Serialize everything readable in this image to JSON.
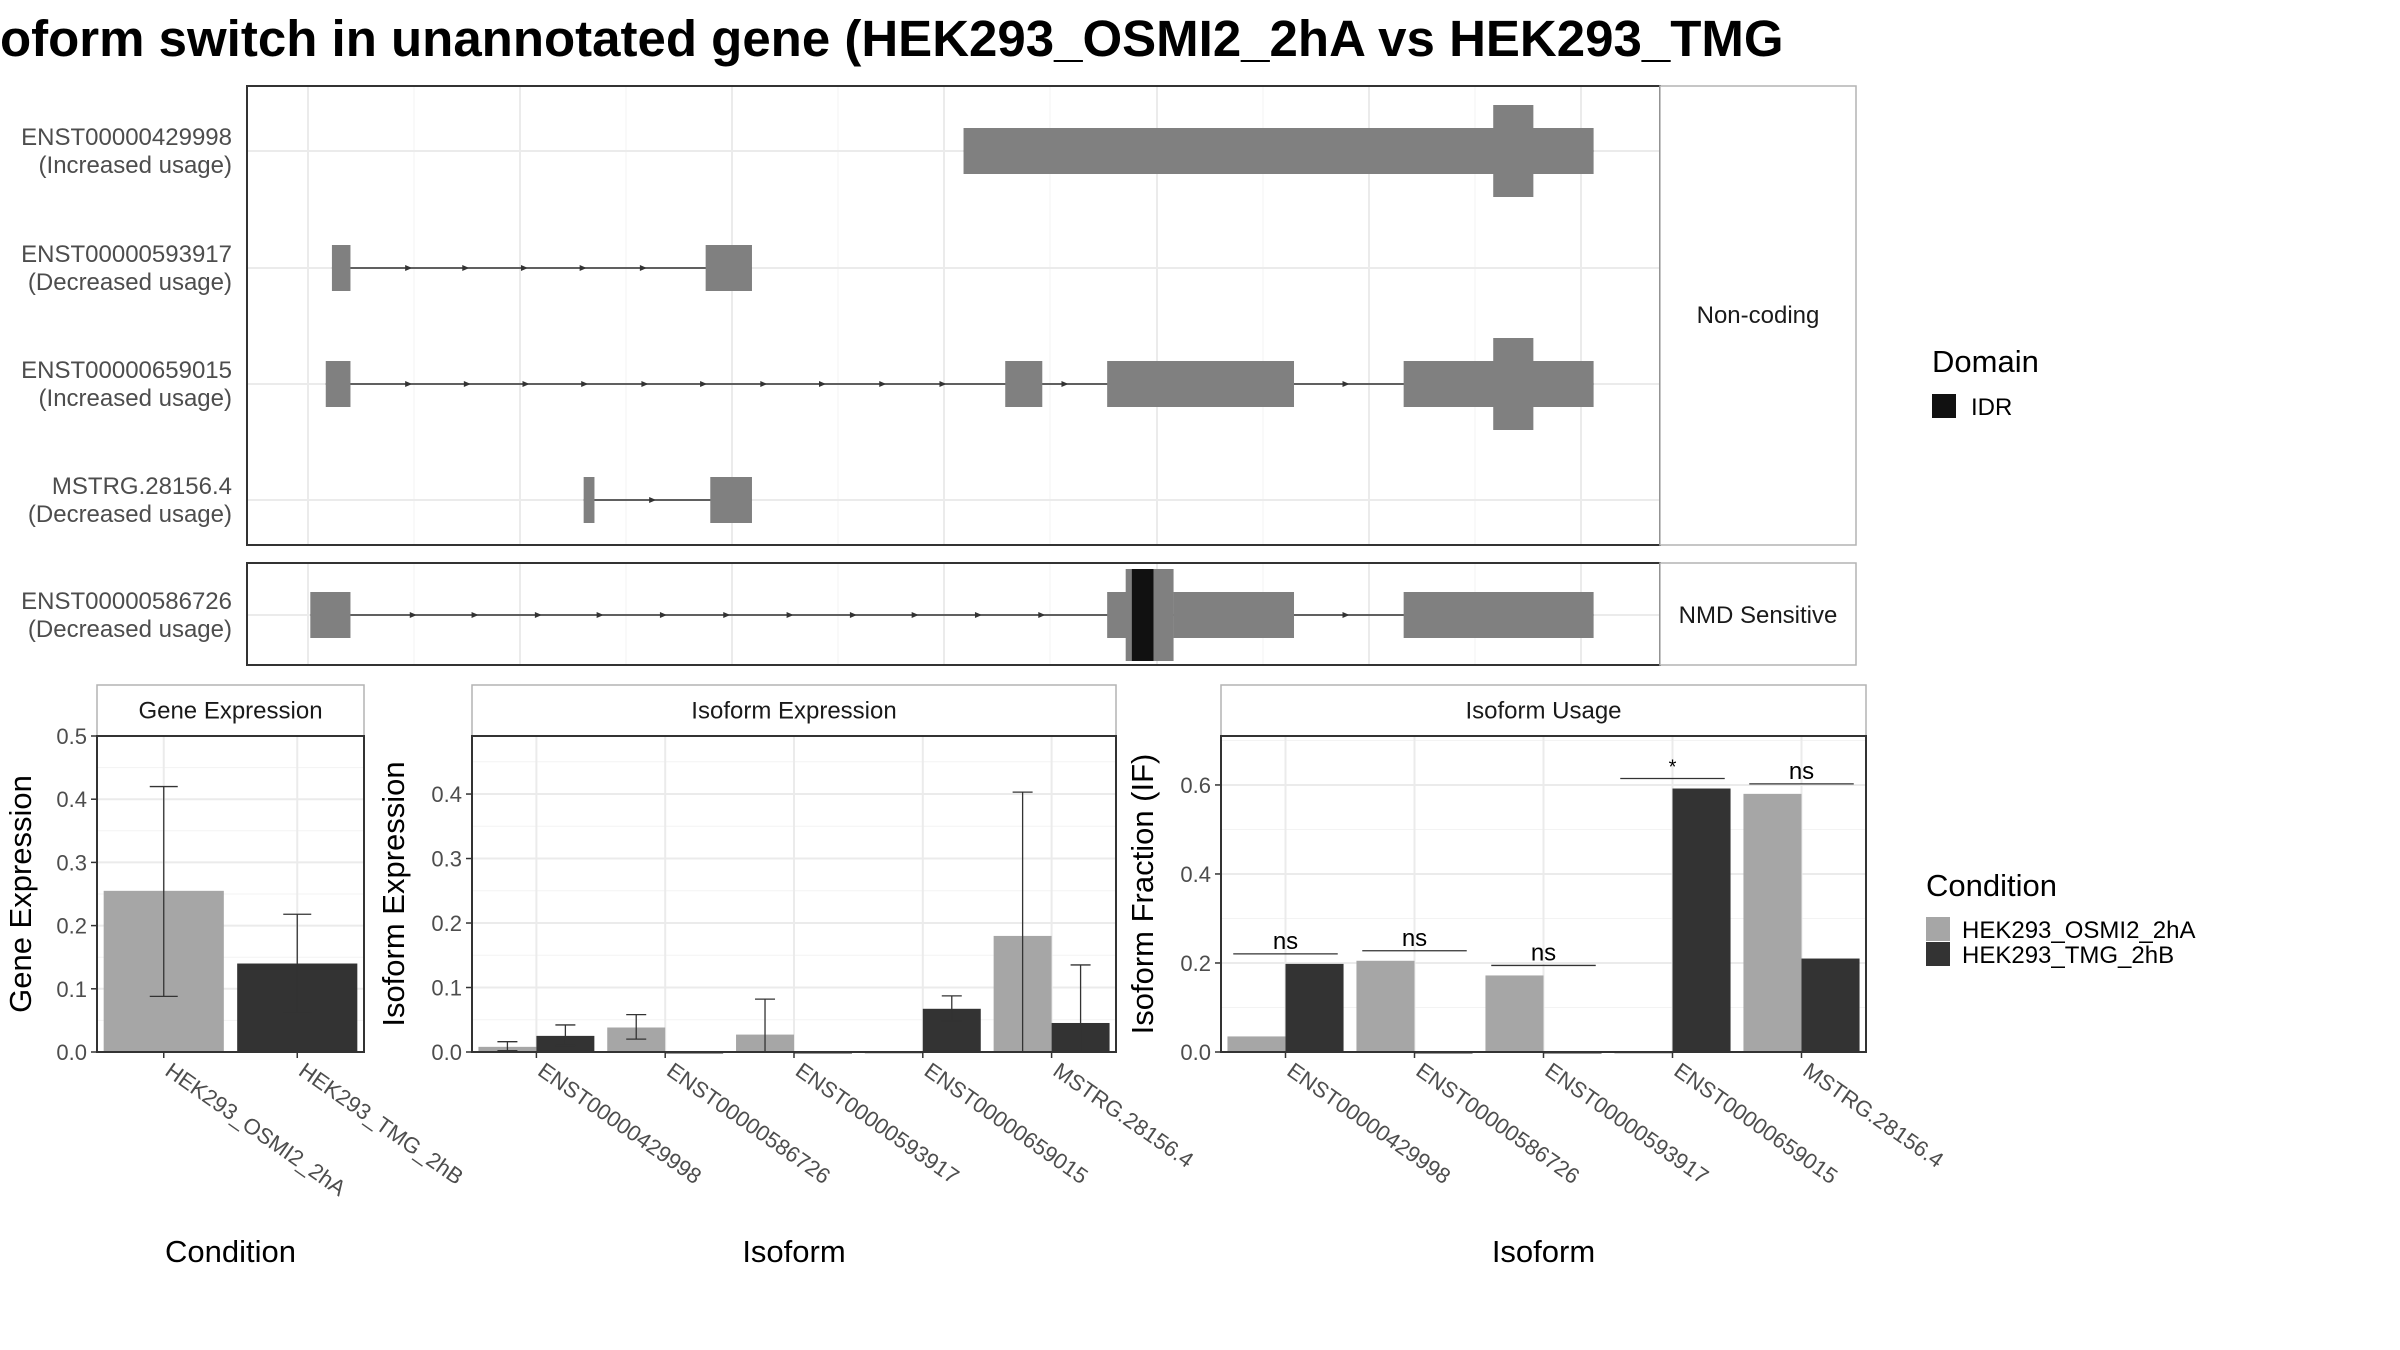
{
  "title": "oform switch in unannotated gene (HEK293_OSMI2_2hA vs HEK293_TMG",
  "colors": {
    "osmi": "#a6a6a6",
    "tmg": "#333333",
    "exon": "#808080",
    "idr": "#111111",
    "grid": "#ebebeb",
    "panel_border": "#333333",
    "strip_border": "#b3b3b3",
    "axis_text": "#4d4d4d"
  },
  "transcripts": {
    "groups": [
      {
        "label": "Non-coding",
        "rows": [
          {
            "id": "ENST00000429998",
            "usage": "(Increased usage)",
            "exons": [
              {
                "start": 624,
                "end": 1032,
                "type": "wide"
              },
              {
                "start": 967,
                "end": 993,
                "type": "cds"
              }
            ],
            "arrows": []
          },
          {
            "id": "ENST00000593917",
            "usage": "(Decreased usage)",
            "exons": [
              {
                "start": 215,
                "end": 227,
                "type": "narrow"
              },
              {
                "start": 457,
                "end": 487,
                "type": "wide"
              }
            ],
            "arrows": [
              265,
              302,
              340,
              378,
              417
            ]
          },
          {
            "id": "ENST00000659015",
            "usage": "(Increased usage)",
            "exons": [
              {
                "start": 211,
                "end": 227,
                "type": "wide"
              },
              {
                "start": 651,
                "end": 675,
                "type": "wide"
              },
              {
                "start": 717,
                "end": 838,
                "type": "wide"
              },
              {
                "start": 909,
                "end": 1032,
                "type": "wide"
              },
              {
                "start": 967,
                "end": 993,
                "type": "cds"
              }
            ],
            "arrows": [
              265,
              303,
              341,
              379,
              418,
              456,
              495,
              533,
              572,
              611,
              690,
              872
            ]
          },
          {
            "id": "MSTRG.28156.4",
            "usage": "(Decreased usage)",
            "exons": [
              {
                "start": 378,
                "end": 385,
                "type": "wide"
              },
              {
                "start": 460,
                "end": 487,
                "type": "wide"
              }
            ],
            "arrows": [
              423
            ]
          }
        ]
      },
      {
        "label": "NMD Sensitive",
        "rows": [
          {
            "id": "ENST00000586726",
            "usage": "(Decreased usage)",
            "exons": [
              {
                "start": 201,
                "end": 227,
                "type": "wide"
              },
              {
                "start": 717,
                "end": 760,
                "type": "wide"
              },
              {
                "start": 729,
                "end": 760,
                "type": "cds"
              },
              {
                "start": 733,
                "end": 747,
                "type": "idr"
              },
              {
                "start": 760,
                "end": 838,
                "type": "wide"
              },
              {
                "start": 909,
                "end": 1032,
                "type": "wide"
              }
            ],
            "arrows": [
              268,
              308,
              349,
              389,
              430,
              471,
              512,
              553,
              593,
              634,
              675,
              872
            ]
          }
        ]
      }
    ]
  },
  "domain_legend": {
    "title": "Domain",
    "items": [
      {
        "label": "IDR",
        "color": "#111111"
      }
    ]
  },
  "condition_legend": {
    "title": "Condition",
    "items": [
      {
        "label": "HEK293_OSMI2_2hA",
        "color": "#a6a6a6"
      },
      {
        "label": "HEK293_TMG_2hB",
        "color": "#333333"
      }
    ]
  },
  "chart_data": [
    {
      "type": "bar",
      "title": "Gene Expression",
      "xlabel": "Condition",
      "ylabel": "Gene Expression",
      "ylim": [
        0,
        0.5
      ],
      "yticks": [
        "0.0",
        "0.1",
        "0.2",
        "0.3",
        "0.4",
        "0.5"
      ],
      "categories": [
        "HEK293_OSMI2_2hA",
        "HEK293_TMG_2hB"
      ],
      "series": [
        {
          "name": "HEK293_OSMI2_2hA",
          "values": [
            0.255,
            null
          ],
          "err_low": [
            0.088,
            null
          ],
          "err_high": [
            0.42,
            null
          ]
        },
        {
          "name": "HEK293_TMG_2hB",
          "values": [
            null,
            0.14
          ],
          "err_low": [
            null,
            0.062
          ],
          "err_high": [
            null,
            0.218
          ]
        }
      ]
    },
    {
      "type": "bar",
      "title": "Isoform Expression",
      "xlabel": "Isoform",
      "ylabel": "Isoform Expression",
      "ylim": [
        0,
        0.49
      ],
      "yticks": [
        "0.0",
        "0.1",
        "0.2",
        "0.3",
        "0.4"
      ],
      "categories": [
        "ENST00000429998",
        "ENST00000586726",
        "ENST00000593917",
        "ENST00000659015",
        "MSTRG.28156.4"
      ],
      "series": [
        {
          "name": "HEK293_OSMI2_2hA",
          "values": [
            0.008,
            0.038,
            0.027,
            0.0,
            0.18
          ],
          "err_low": [
            0.002,
            0.02,
            0.0,
            0.0,
            0.0
          ],
          "err_high": [
            0.016,
            0.058,
            0.082,
            0.0,
            0.403
          ]
        },
        {
          "name": "HEK293_TMG_2hB",
          "values": [
            0.025,
            0.0,
            0.0,
            0.067,
            0.045
          ],
          "err_low": [
            0.01,
            0.0,
            0.0,
            0.048,
            0.0
          ],
          "err_high": [
            0.042,
            0.0,
            0.0,
            0.087,
            0.135
          ]
        }
      ]
    },
    {
      "type": "bar",
      "title": "Isoform Usage",
      "xlabel": "Isoform",
      "ylabel": "Isoform Fraction (IF)",
      "ylim": [
        0,
        0.71
      ],
      "yticks": [
        "0.0",
        "0.2",
        "0.4",
        "0.6"
      ],
      "categories": [
        "ENST00000429998",
        "ENST00000586726",
        "ENST00000593917",
        "ENST00000659015",
        "MSTRG.28156.4"
      ],
      "series": [
        {
          "name": "HEK293_OSMI2_2hA",
          "values": [
            0.035,
            0.205,
            0.172,
            0.0,
            0.58
          ]
        },
        {
          "name": "HEK293_TMG_2hB",
          "values": [
            0.198,
            0.0,
            0.0,
            0.592,
            0.21
          ]
        }
      ],
      "significance": [
        "ns",
        "ns",
        "ns",
        "*",
        "ns"
      ]
    }
  ]
}
